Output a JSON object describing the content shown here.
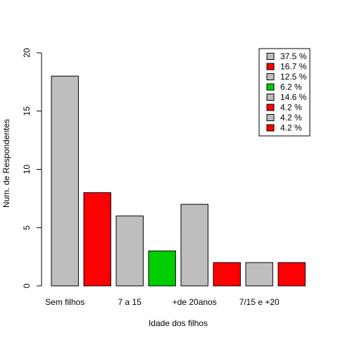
{
  "chart_data": {
    "type": "bar",
    "categories": [
      "Sem filhos",
      "",
      "7 a 15",
      "",
      "+de 20anos",
      "",
      "7/15 e +20",
      ""
    ],
    "values": [
      18,
      8,
      6,
      3,
      7,
      2,
      2,
      2
    ],
    "bar_colors": [
      "#bebebe",
      "#ff0000",
      "#bebebe",
      "#00cd00",
      "#bebebe",
      "#ff0000",
      "#bebebe",
      "#ff0000"
    ],
    "xlabel": "Idade dos filhos",
    "ylabel": "Num. de Respondentes",
    "ylim": [
      0,
      20
    ],
    "yticks": [
      0,
      5,
      10,
      15,
      20
    ],
    "grid": false,
    "legend": {
      "placement": "top-right",
      "entries": [
        {
          "label": "37.5 %",
          "color": "#bebebe"
        },
        {
          "label": "16.7 %",
          "color": "#ff0000"
        },
        {
          "label": "12.5 %",
          "color": "#bebebe"
        },
        {
          "label": "6.2 %",
          "color": "#00cd00"
        },
        {
          "label": "14.6 %",
          "color": "#bebebe"
        },
        {
          "label": "4.2 %",
          "color": "#ff0000"
        },
        {
          "label": "4.2 %",
          "color": "#bebebe"
        },
        {
          "label": "4.2 %",
          "color": "#ff0000"
        }
      ]
    }
  }
}
